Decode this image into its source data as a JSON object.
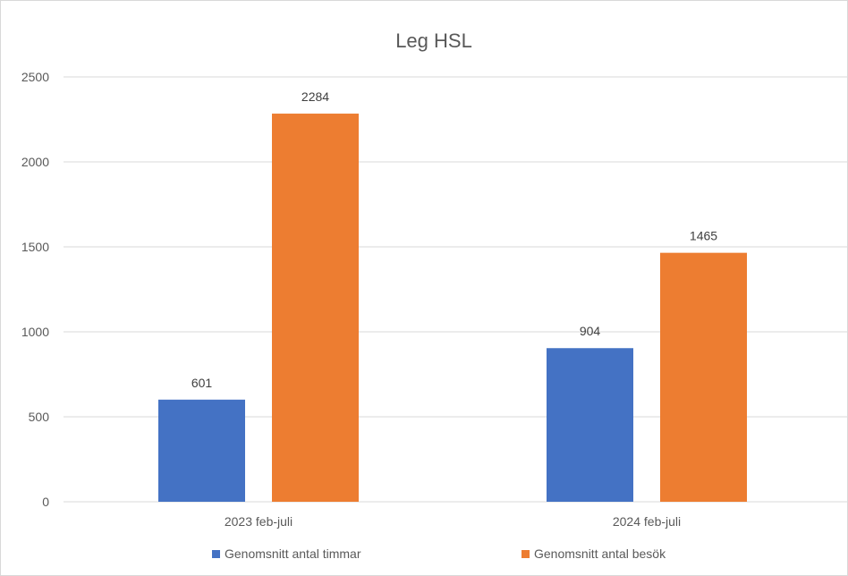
{
  "chart_data": {
    "type": "bar",
    "title": "Leg HSL",
    "categories": [
      "2023 feb-juli",
      "2024 feb-juli"
    ],
    "series": [
      {
        "name": "Genomsnitt antal timmar",
        "values": [
          601,
          904
        ],
        "color": "#4472c4"
      },
      {
        "name": "Genomsnitt antal besök",
        "values": [
          2284,
          1465
        ],
        "color": "#ed7d31"
      }
    ],
    "ylim": [
      0,
      2500
    ],
    "yticks": [
      0,
      500,
      1000,
      1500,
      2000,
      2500
    ],
    "grid": true,
    "legend_position": "bottom",
    "data_labels": true
  }
}
